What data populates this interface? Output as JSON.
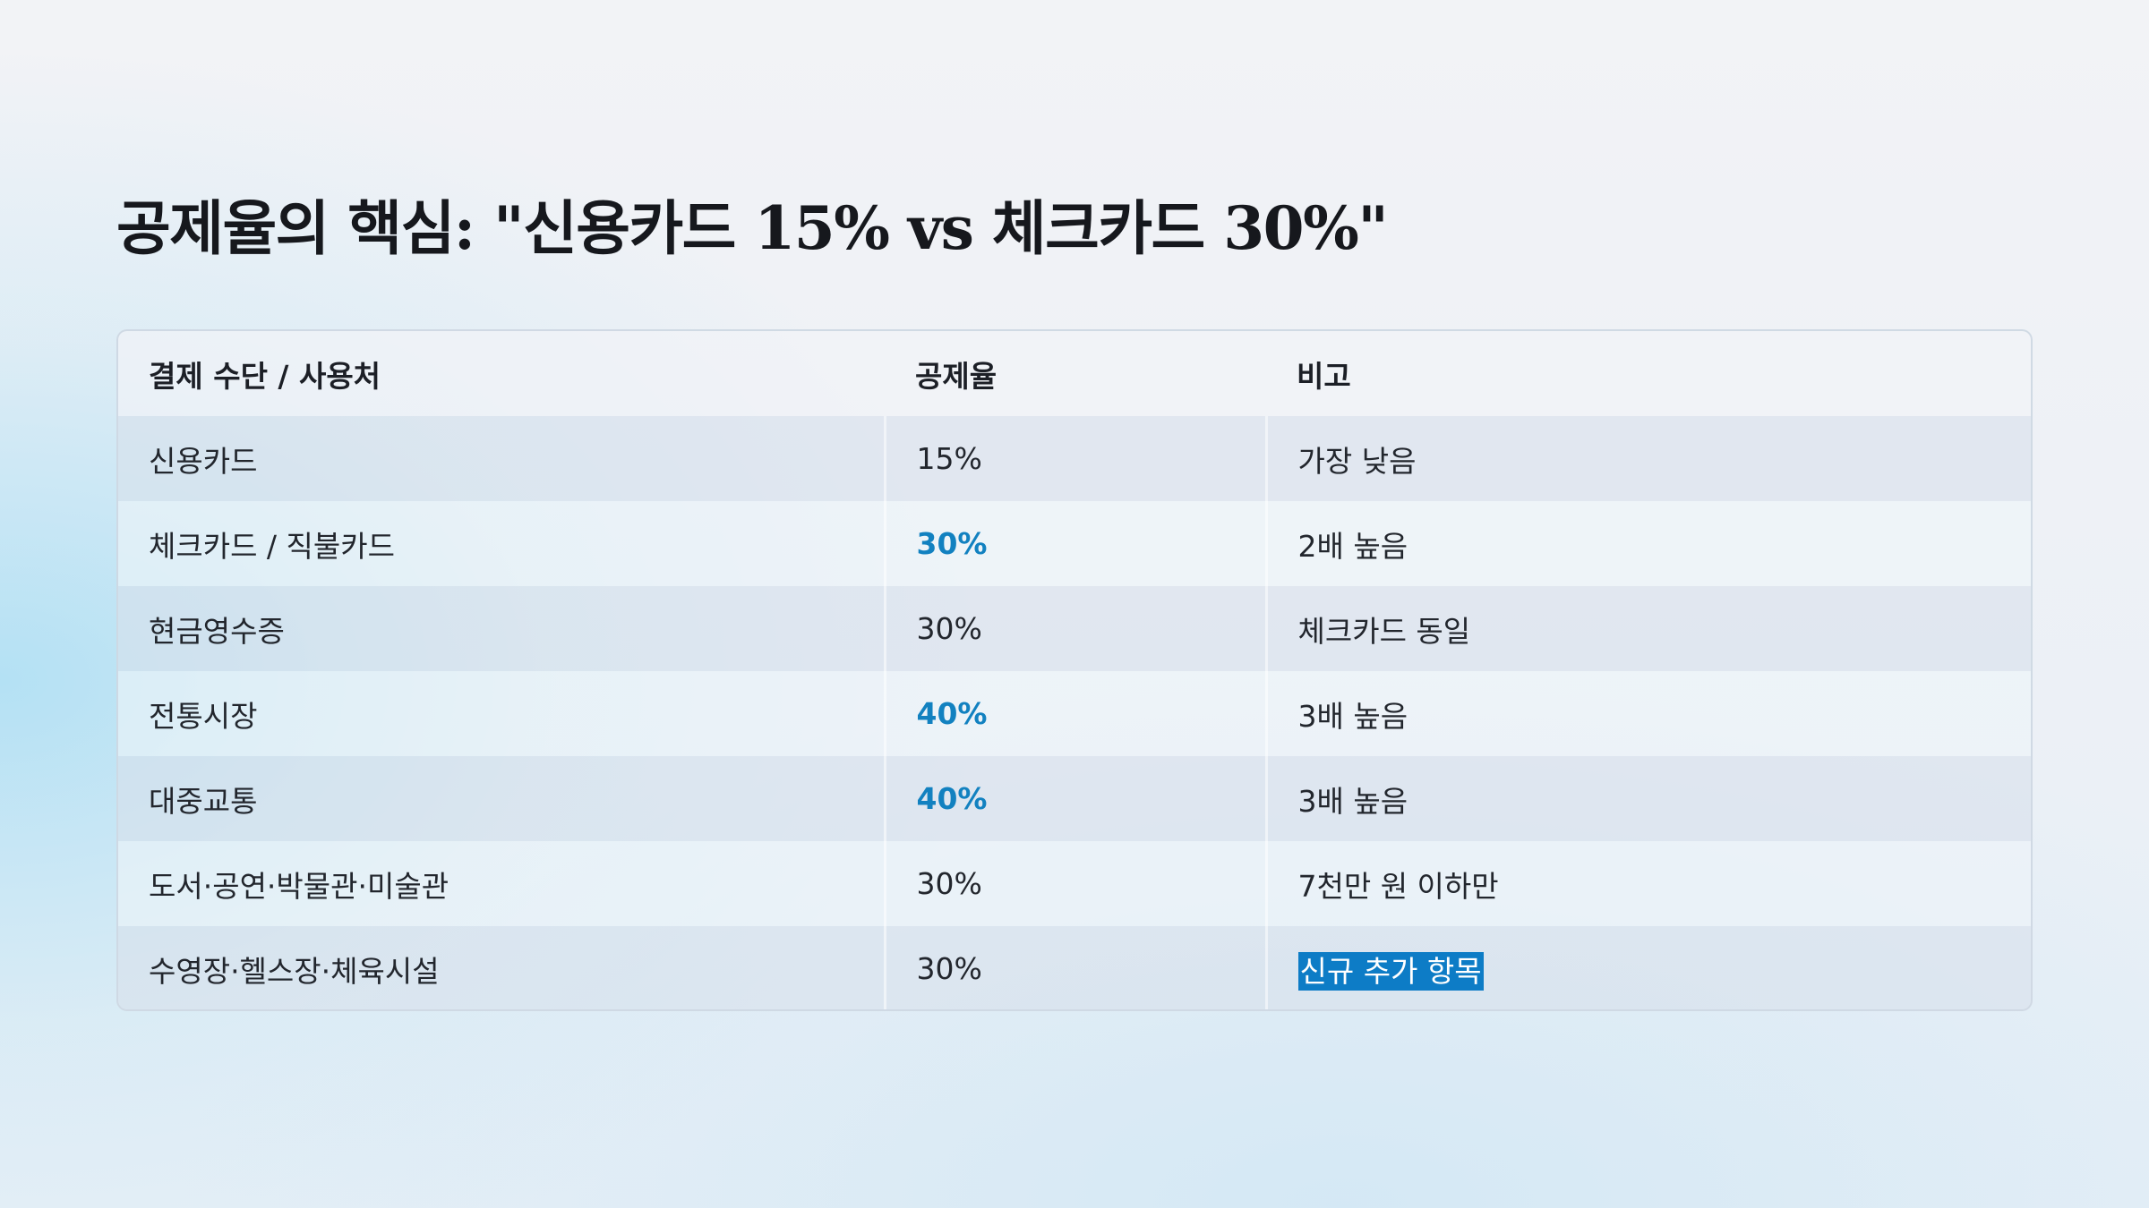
{
  "title": "공제율의 핵심: \"신용카드 15% vs 체크카드 30%\"",
  "table": {
    "headers": [
      "결제 수단 / 사용처",
      "공제율",
      "비고"
    ],
    "rows": [
      {
        "method": "신용카드",
        "rate": "15%",
        "note": "가장 낮음",
        "emphasized": false,
        "note_highlighted": false
      },
      {
        "method": "체크카드 / 직불카드",
        "rate": "30%",
        "note": "2배 높음",
        "emphasized": true,
        "note_highlighted": false
      },
      {
        "method": "현금영수증",
        "rate": "30%",
        "note": "체크카드 동일",
        "emphasized": false,
        "note_highlighted": false
      },
      {
        "method": "전통시장",
        "rate": "40%",
        "note": "3배 높음",
        "emphasized": true,
        "note_highlighted": false
      },
      {
        "method": "대중교통",
        "rate": "40%",
        "note": "3배 높음",
        "emphasized": true,
        "note_highlighted": false
      },
      {
        "method": "도서·공연·박물관·미술관",
        "rate": "30%",
        "note": "7천만 원 이하만",
        "emphasized": false,
        "note_highlighted": false
      },
      {
        "method": "수영장·헬스장·체육시설",
        "rate": "30%",
        "note": "신규 추가 항목",
        "emphasized": false,
        "note_highlighted": true
      }
    ]
  },
  "colors": {
    "accent": "#1281c0",
    "highlight": "#0d7cc6"
  }
}
